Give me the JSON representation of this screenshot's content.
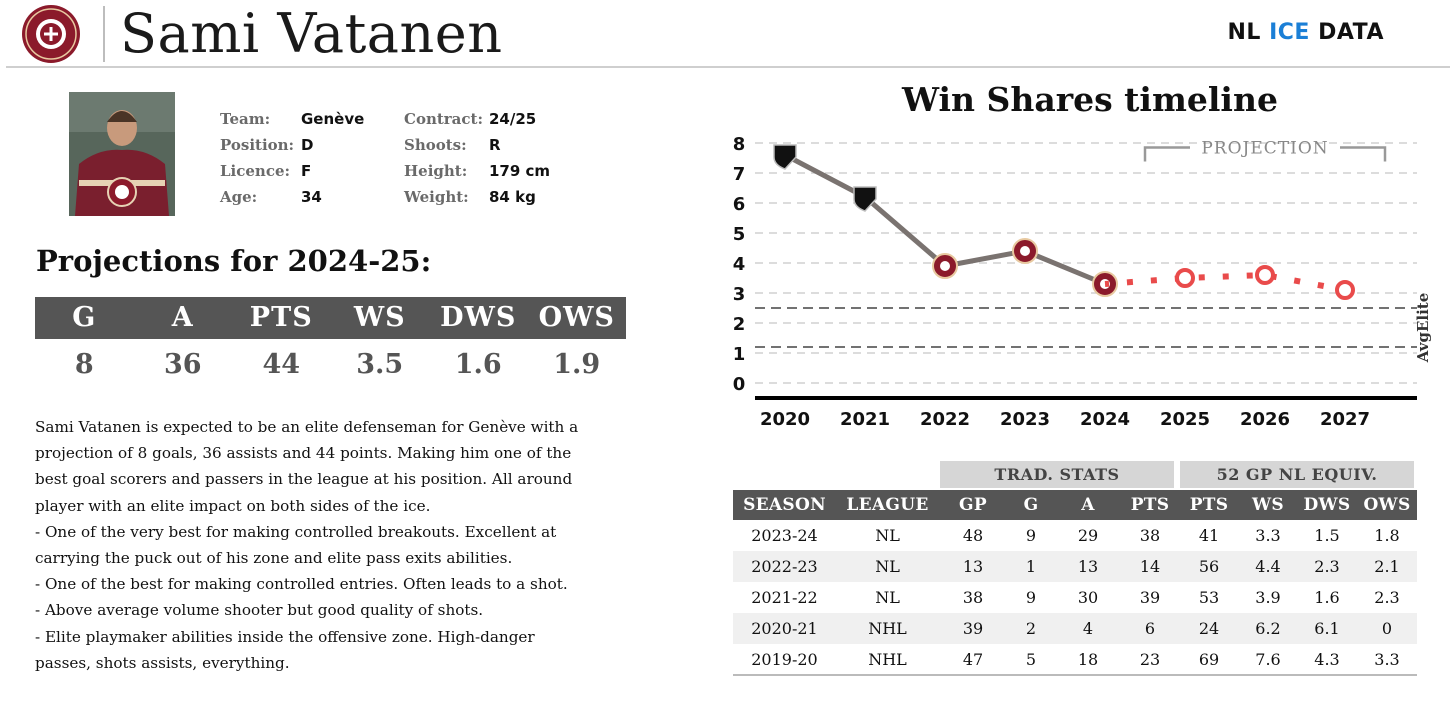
{
  "header": {
    "team_logo_icon": "geneve-servette-logo-icon",
    "player_name": "Sami Vatanen",
    "brand_prefix": "NL ",
    "brand_accent": "ICE",
    "brand_suffix": " DATA",
    "accent_color": "#1b7fd6"
  },
  "player": {
    "photo_icon": "player-photo-icon",
    "team_label": "Team:",
    "team": "Genève",
    "position_label": "Position:",
    "position": "D",
    "licence_label": "Licence:",
    "licence": "F",
    "age_label": "Age:",
    "age": "34",
    "contract_label": "Contract:",
    "contract": "24/25",
    "shoots_label": "Shoots:",
    "shoots": "R",
    "height_label": "Height:",
    "height": "179 cm",
    "weight_label": "Weight:",
    "weight": "84 kg"
  },
  "projections": {
    "title": "Projections for 2024-25:",
    "headers": [
      "G",
      "A",
      "PTS",
      "WS",
      "DWS",
      "OWS"
    ],
    "values": [
      "8",
      "36",
      "44",
      "3.5",
      "1.6",
      "1.9"
    ]
  },
  "description": [
    "Sami Vatanen is expected to be an elite defenseman for Genève with a",
    "projection of 8 goals, 36 assists and 44 points. Making him one of the",
    "best goal scorers and passers in the league at his position. All around",
    "player with an elite impact on both sides of the ice.",
    "- One of the very best for making controlled breakouts. Excellent at",
    "carrying the puck out of his zone and elite pass exits abilities.",
    "- One of the best for making controlled entries. Often leads to a shot.",
    "- Above average volume shooter but good quality of shots.",
    "- Elite playmaker abilities inside the offensive zone. High-danger",
    "passes, shots assists, everything."
  ],
  "chart_data": {
    "type": "line",
    "title": "Win Shares timeline",
    "x": [
      2020,
      2021,
      2022,
      2023,
      2024,
      2025,
      2026,
      2027
    ],
    "ylim": [
      0,
      8
    ],
    "yticks": [
      0,
      1,
      2,
      3,
      4,
      5,
      6,
      7,
      8
    ],
    "grid": true,
    "series": [
      {
        "x": [
          2020,
          2021,
          2022,
          2023,
          2024
        ],
        "values": [
          7.6,
          6.2,
          3.9,
          4.4,
          3.3
        ],
        "color": "#7a7370",
        "markers": [
          "nhl-logo-icon",
          "nhl-logo-icon",
          "geneve-servette-logo-icon",
          "geneve-servette-logo-icon",
          "geneve-servette-logo-icon"
        ]
      },
      {
        "x": [
          2025,
          2026,
          2027
        ],
        "values": [
          3.5,
          3.6,
          3.1
        ],
        "color": "#e94b4b",
        "style": "dotted"
      }
    ],
    "reference_lines": [
      2.5,
      1.2
    ],
    "reference_label": "AvgElite",
    "annotation": {
      "text": "PROJECTION",
      "x_range": [
        2025,
        2027
      ]
    }
  },
  "stats_table": {
    "group_trad": "TRAD. STATS",
    "group_equiv": "52 GP NL EQUIV.",
    "headers": [
      "SEASON",
      "LEAGUE",
      "GP",
      "G",
      "A",
      "PTS",
      "PTS",
      "WS",
      "DWS",
      "OWS"
    ],
    "rows": [
      [
        "2023-24",
        "NL",
        "48",
        "9",
        "29",
        "38",
        "41",
        "3.3",
        "1.5",
        "1.8"
      ],
      [
        "2022-23",
        "NL",
        "13",
        "1",
        "13",
        "14",
        "56",
        "4.4",
        "2.3",
        "2.1"
      ],
      [
        "2021-22",
        "NL",
        "38",
        "9",
        "30",
        "39",
        "53",
        "3.9",
        "1.6",
        "2.3"
      ],
      [
        "2020-21",
        "NHL",
        "39",
        "2",
        "4",
        "6",
        "24",
        "6.2",
        "6.1",
        "0"
      ],
      [
        "2019-20",
        "NHL",
        "47",
        "5",
        "18",
        "23",
        "69",
        "7.6",
        "4.3",
        "3.3"
      ]
    ]
  }
}
